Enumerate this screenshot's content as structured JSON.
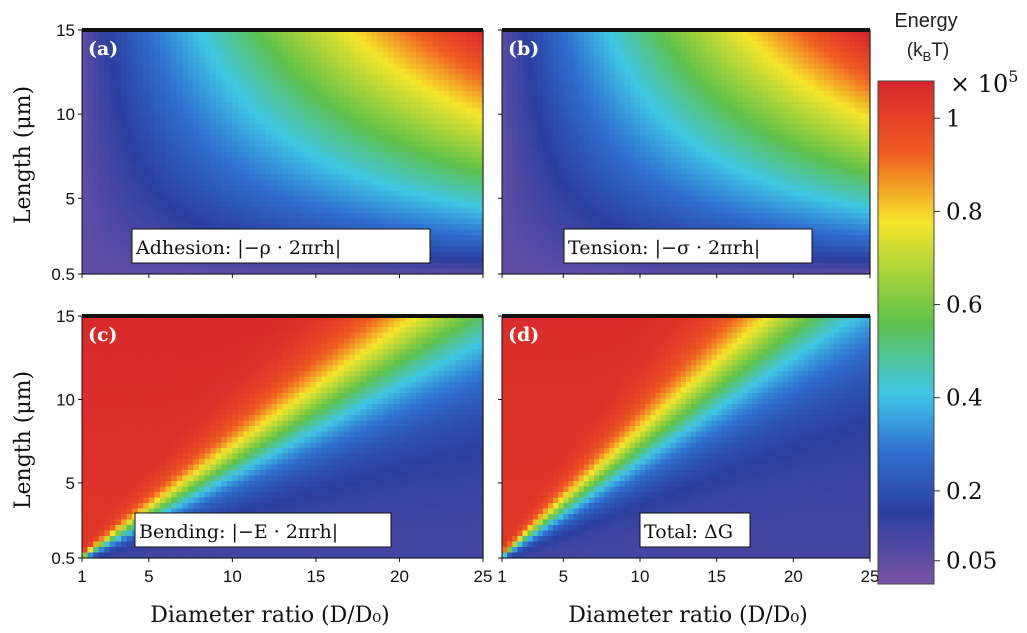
{
  "figure": {
    "y_label": "Length (μm)",
    "x_label": "Diameter ratio (D/D₀)"
  },
  "chart_data": [
    {
      "type": "heatmap",
      "panel": "(a)",
      "annotation": "Adhesion: |−ρ · 2πrh|",
      "field": "adhesion",
      "xlim": [
        1,
        25
      ],
      "ylim": [
        0.5,
        15
      ],
      "x_ticks": [
        "1",
        "5",
        "10",
        "15",
        "20",
        "25"
      ],
      "y_ticks": [
        "0.5",
        "5",
        "10",
        "15"
      ],
      "x_tick_values": [
        1,
        5,
        10,
        15,
        20,
        25
      ],
      "y_tick_values": [
        0.5,
        5,
        10,
        15
      ],
      "value_range": [
        0,
        110000.0
      ]
    },
    {
      "type": "heatmap",
      "panel": "(b)",
      "annotation": "Tension: |−σ · 2πrh|",
      "field": "tension",
      "xlim": [
        1,
        25
      ],
      "ylim": [
        0.5,
        15
      ],
      "x_ticks": [
        "1",
        "5",
        "10",
        "15",
        "20",
        "25"
      ],
      "y_ticks": [
        "0.5",
        "5",
        "10",
        "15"
      ],
      "x_tick_values": [
        1,
        5,
        10,
        15,
        20,
        25
      ],
      "y_tick_values": [
        0.5,
        5,
        10,
        15
      ],
      "value_range": [
        0,
        110000.0
      ]
    },
    {
      "type": "heatmap",
      "panel": "(c)",
      "annotation": "Bending: |−E · 2πrh|",
      "field": "bending",
      "xlim": [
        1,
        25
      ],
      "ylim": [
        0.5,
        15
      ],
      "x_ticks": [
        "1",
        "5",
        "10",
        "15",
        "20",
        "25"
      ],
      "y_ticks": [
        "0.5",
        "5",
        "10",
        "15"
      ],
      "x_tick_values": [
        1,
        5,
        10,
        15,
        20,
        25
      ],
      "y_tick_values": [
        0.5,
        5,
        10,
        15
      ],
      "value_range": [
        0,
        110000.0
      ]
    },
    {
      "type": "heatmap",
      "panel": "(d)",
      "annotation": "Total: ΔG",
      "field": "total",
      "xlim": [
        1,
        25
      ],
      "ylim": [
        0.5,
        15
      ],
      "x_ticks": [
        "1",
        "5",
        "10",
        "15",
        "20",
        "25"
      ],
      "y_ticks": [
        "0.5",
        "5",
        "10",
        "15"
      ],
      "x_tick_values": [
        1,
        5,
        10,
        15,
        20,
        25
      ],
      "y_tick_values": [
        0.5,
        5,
        10,
        15
      ],
      "value_range": [
        0,
        110000.0
      ]
    }
  ],
  "colorbar": {
    "title_line1": "Energy",
    "title_line2": "(k",
    "title_sub": "B",
    "title_end": "T)",
    "multiplier": "× 10",
    "multiplier_exp": "5",
    "ticks": [
      "1",
      "0.8",
      "0.6",
      "0.4",
      "0.2",
      "0.05"
    ],
    "tick_values": [
      1.0,
      0.8,
      0.6,
      0.4,
      0.2,
      0.05
    ],
    "range": [
      0.0,
      1.08
    ],
    "colors": [
      "#7a54a6",
      "#2b3fa0",
      "#2f6fd0",
      "#3fc6e6",
      "#5fc24a",
      "#f5e62a",
      "#f05a22",
      "#d7262c"
    ],
    "stops": [
      0.0,
      0.14,
      0.26,
      0.38,
      0.52,
      0.72,
      0.86,
      1.0
    ]
  }
}
